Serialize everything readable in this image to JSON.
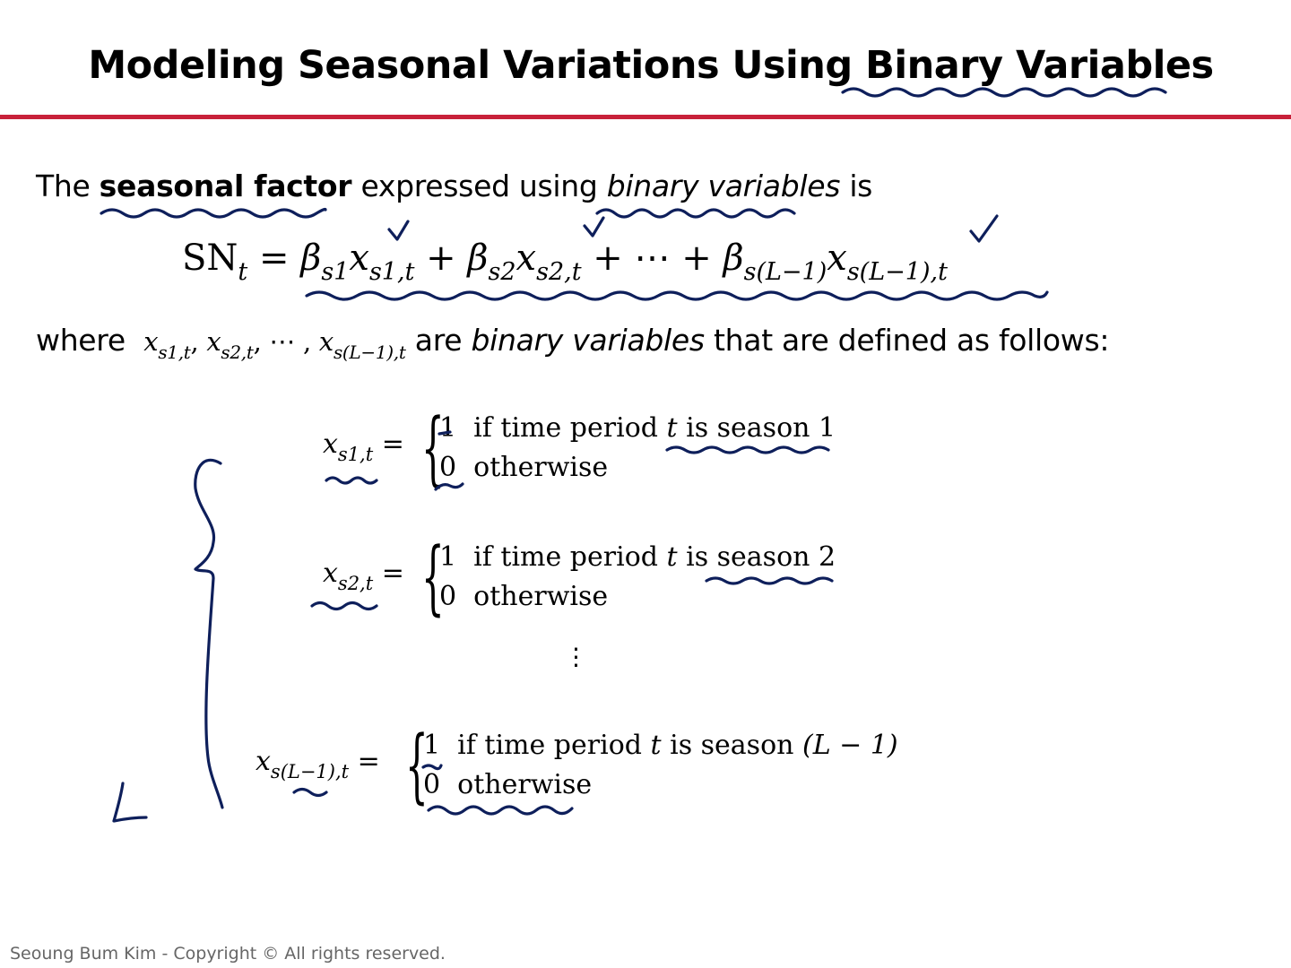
{
  "slide": {
    "title": "Modeling Seasonal Variations Using Binary Variables",
    "intro": {
      "prefix": "The ",
      "bold": "seasonal factor",
      "middle": " expressed using ",
      "italic": "binary variables",
      "suffix": " is"
    },
    "main_equation": {
      "lhs": "SN",
      "lhs_sub": "t",
      "eq": "=",
      "b1": "β",
      "b1_sub": "s1",
      "x1": "x",
      "x1_sub": "s1,t",
      "plus1": "+",
      "b2": "β",
      "b2_sub": "s2",
      "x2": "x",
      "x2_sub": "s2,t",
      "plus2": "+ ⋯ +",
      "bL": "β",
      "bL_sub": "s(L−1)",
      "xL": "x",
      "xL_sub": "s(L−1),t"
    },
    "where_line": {
      "prefix": "where",
      "vars": [
        {
          "x": "x",
          "sub": "s1,t",
          "sep": ", "
        },
        {
          "x": "x",
          "sub": "s2,t",
          "sep": ", ⋯ , "
        },
        {
          "x": "x",
          "sub": "s(L−1),t",
          "sep": ""
        }
      ],
      "middle": " are ",
      "italic": "binary variables",
      "suffix": " that are defined as follows:"
    },
    "definitions": [
      {
        "var": "x",
        "sub": "s1,t",
        "eq": "=",
        "one": "1",
        "one_text": "if time period",
        "t": "t",
        "is": "is season 1",
        "zero": "0",
        "zero_text": "otherwise"
      },
      {
        "var": "x",
        "sub": "s2,t",
        "eq": "=",
        "one": "1",
        "one_text": "if time period",
        "t": "t",
        "is": "is season 2",
        "zero": "0",
        "zero_text": "otherwise"
      },
      {
        "var": "x",
        "sub": "s(L−1),t",
        "eq": "=",
        "one": "1",
        "one_text": "if time period",
        "t": "t",
        "is": "is season",
        "is_extra": "(L − 1)",
        "zero": "0",
        "zero_text": "otherwise"
      }
    ],
    "vdots": "⋮",
    "annotation_letter": "L",
    "footer": "Seoung Bum Kim - Copyright © All rights reserved.",
    "colors": {
      "rule": "#c8213a",
      "ink": "#0e1f5b",
      "footer": "#666666"
    }
  }
}
